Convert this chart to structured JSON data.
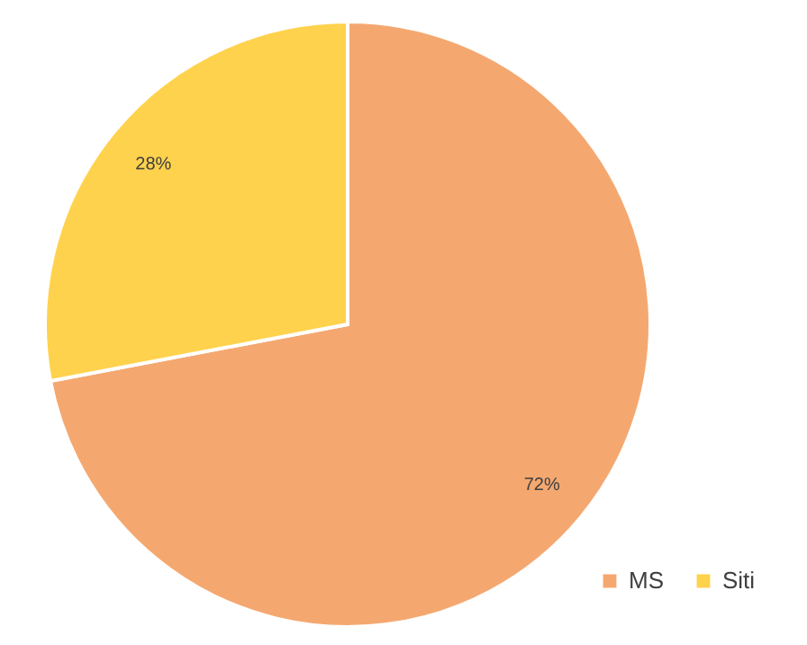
{
  "chart_data": {
    "type": "pie",
    "categories": [
      "MS",
      "Siti"
    ],
    "values": [
      72,
      28
    ],
    "colors": [
      "#f4a870",
      "#ffd24d"
    ],
    "value_labels": [
      "72%",
      "28%"
    ],
    "legend": "bottom right"
  }
}
